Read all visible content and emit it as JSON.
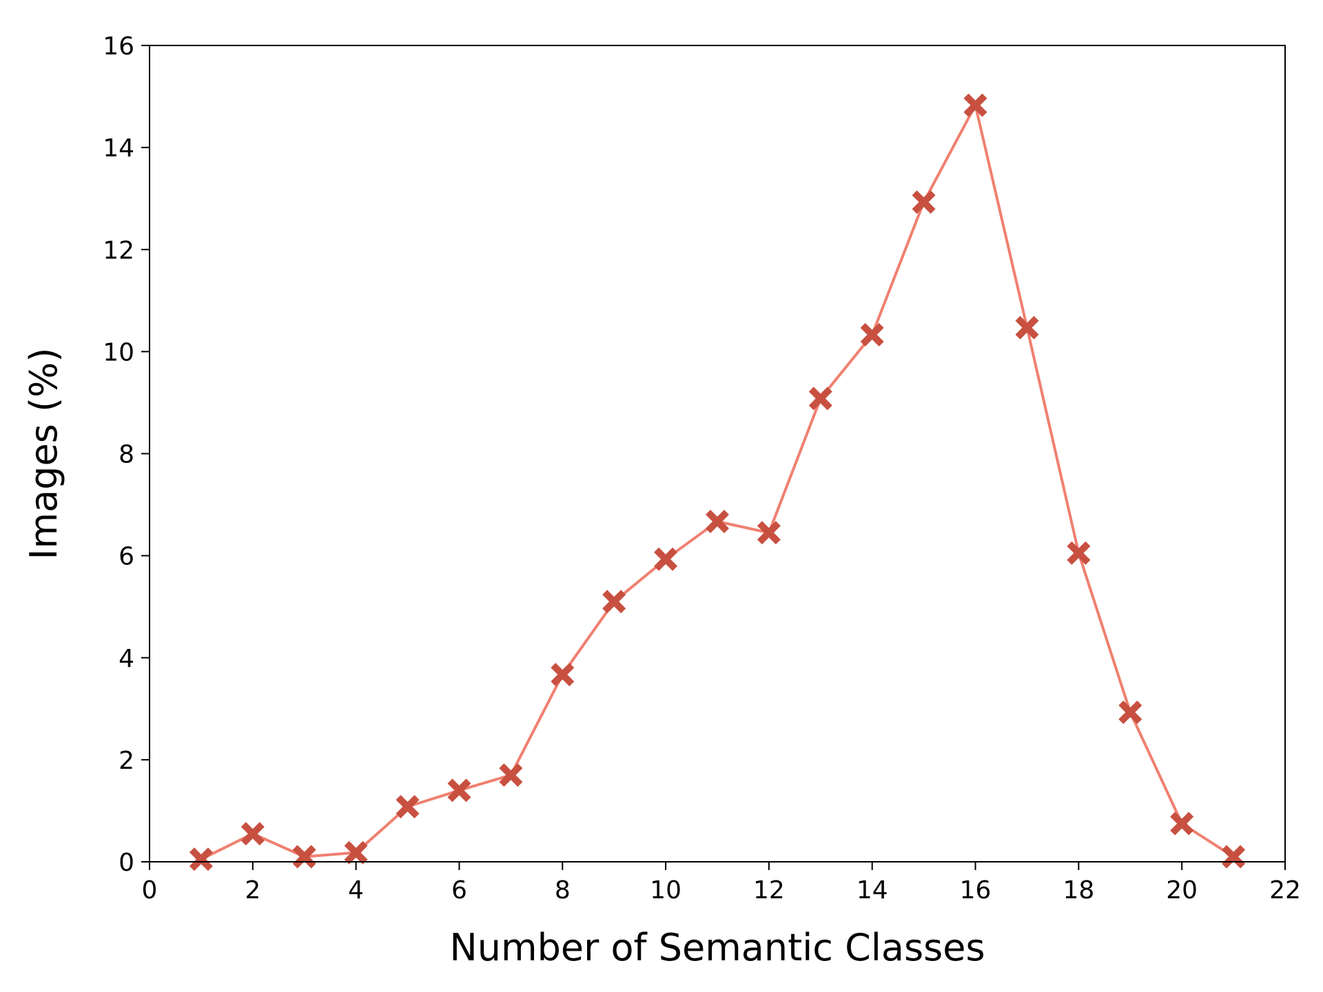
{
  "chart_data": {
    "type": "line",
    "title": "",
    "xlabel": "Number of Semantic Classes",
    "ylabel": "Images (%)",
    "xlim": [
      0,
      22
    ],
    "ylim": [
      0,
      16
    ],
    "xticks": [
      0,
      2,
      4,
      6,
      8,
      10,
      12,
      14,
      16,
      18,
      20,
      22
    ],
    "yticks": [
      0,
      2,
      4,
      6,
      8,
      10,
      12,
      14,
      16
    ],
    "grid": false,
    "legend": "none",
    "series": [
      {
        "x": [
          1,
          2,
          3,
          4,
          5,
          6,
          7,
          8,
          9,
          10,
          11,
          12,
          13,
          14,
          15,
          16,
          17,
          18,
          19,
          20,
          21
        ],
        "values": [
          0.05,
          0.55,
          0.1,
          0.18,
          1.08,
          1.4,
          1.7,
          3.67,
          5.1,
          5.93,
          6.67,
          6.45,
          9.08,
          10.33,
          12.93,
          14.83,
          10.47,
          6.05,
          2.93,
          0.75,
          0.1
        ],
        "line_color": "#F08070",
        "marker": "X",
        "marker_color": "#C85040"
      }
    ]
  }
}
